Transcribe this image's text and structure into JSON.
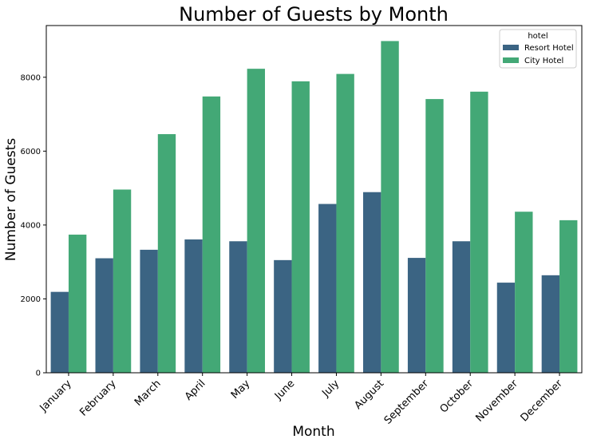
{
  "chart_data": {
    "type": "bar",
    "title": "Number of Guests by Month",
    "xlabel": "Month",
    "ylabel": "Number of Guests",
    "ylim": [
      0,
      9400
    ],
    "yticks": [
      0,
      2000,
      4000,
      6000,
      8000
    ],
    "grid": false,
    "legend": {
      "title": "hotel",
      "placement": "top-right"
    },
    "categories": [
      "January",
      "February",
      "March",
      "April",
      "May",
      "June",
      "July",
      "August",
      "September",
      "October",
      "November",
      "December"
    ],
    "series": [
      {
        "name": "Resort Hotel",
        "color": "#3b6483",
        "values": [
          2190,
          3100,
          3330,
          3610,
          3560,
          3050,
          4570,
          4890,
          3110,
          3560,
          2440,
          2640
        ]
      },
      {
        "name": "City Hotel",
        "color": "#43a876",
        "values": [
          3740,
          4960,
          6460,
          7480,
          8230,
          7890,
          8090,
          8980,
          7410,
          7610,
          4360,
          4130
        ]
      }
    ]
  }
}
